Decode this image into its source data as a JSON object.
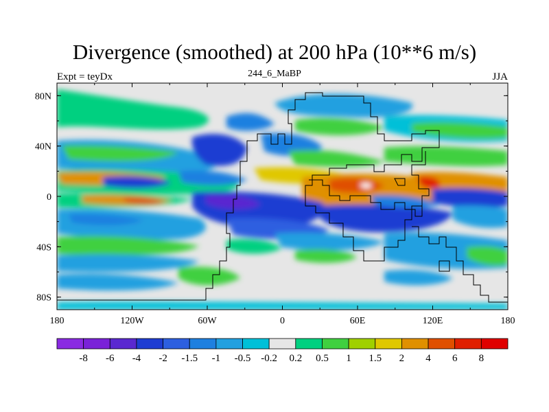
{
  "chart_data": {
    "type": "heatmap",
    "title": "Divergence (smoothed) at 200 hPa (10**6 m/s)",
    "left_subtitle": "Expt = teyDx",
    "center_subtitle": "244_6_MaBP",
    "right_subtitle": "JJA",
    "x_ticks": [
      "180",
      "120W",
      "60W",
      "0",
      "60E",
      "120E",
      "180"
    ],
    "y_ticks": [
      "80N",
      "40N",
      "0",
      "40S",
      "80S"
    ],
    "colorbar_levels": [
      "-8",
      "-6",
      "-4",
      "-2",
      "-1.5",
      "-1",
      "-0.5",
      "-0.2",
      "0.2",
      "0.5",
      "1",
      "1.5",
      "2",
      "4",
      "6",
      "8"
    ],
    "colorbar_colors": [
      "#8a2be2",
      "#7a22d8",
      "#5a28d0",
      "#1e3cd2",
      "#2d5fe0",
      "#1e80e0",
      "#22a0e0",
      "#00c0d8",
      "#e6e6e6",
      "#00d080",
      "#40d040",
      "#a0d000",
      "#e0c800",
      "#e09000",
      "#e05000",
      "#e02000",
      "#e00000"
    ],
    "background_color": "#e6e6e6"
  }
}
